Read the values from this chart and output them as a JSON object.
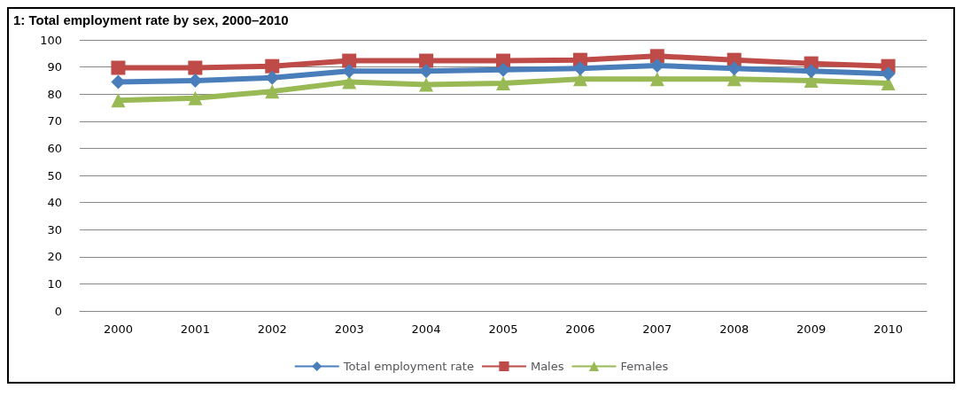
{
  "chart_data": {
    "type": "line",
    "title": "1: Total employment rate by sex, 2000–2010",
    "categories": [
      "2000",
      "2001",
      "2002",
      "2003",
      "2004",
      "2005",
      "2006",
      "2007",
      "2008",
      "2009",
      "2010"
    ],
    "series": [
      {
        "name": "Total employment rate",
        "color": "#4a7ebb",
        "marker": "diamond",
        "values": [
          84.5,
          85,
          86,
          88.5,
          88.5,
          89,
          89.5,
          90.5,
          89.5,
          88.5,
          87.5
        ]
      },
      {
        "name": "Males",
        "color": "#be4b48",
        "marker": "square",
        "values": [
          89.7,
          89.7,
          90.3,
          92.3,
          92.3,
          92.3,
          92.6,
          94,
          92.6,
          91.3,
          90.3
        ]
      },
      {
        "name": "Females",
        "color": "#98b954",
        "marker": "triangle",
        "values": [
          77.7,
          78.5,
          81,
          84.5,
          83.5,
          84,
          85.5,
          85.5,
          85.5,
          85,
          84
        ]
      }
    ],
    "ylim": [
      0,
      100
    ],
    "yticks": [
      0,
      10,
      20,
      30,
      40,
      50,
      60,
      70,
      80,
      90,
      100
    ],
    "grid": "y",
    "legend": "bottom"
  }
}
